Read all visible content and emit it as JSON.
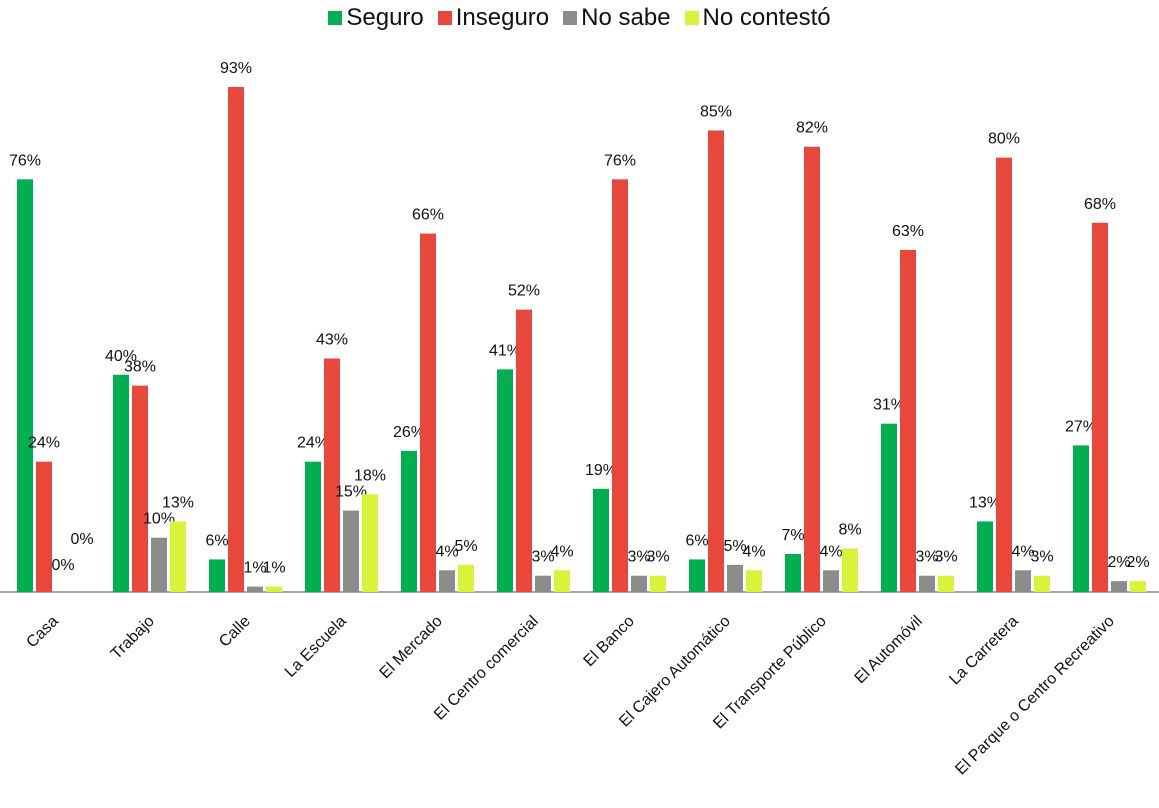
{
  "chart_data": {
    "type": "bar",
    "title": "",
    "xlabel": "",
    "ylabel": "",
    "ylim": [
      0,
      100
    ],
    "grid": false,
    "legend_position": "top-center",
    "categories": [
      "Casa",
      "Trabajo",
      "Calle",
      "La Escuela",
      "El Mercado",
      "El Centro comercial",
      "El Banco",
      "El Cajero Automático",
      "El Transporte Público",
      "El Automóvil",
      "La Carretera",
      "El Parque o Centro Recreativo"
    ],
    "series": [
      {
        "name": "Seguro",
        "color": "#00b050",
        "values": [
          76,
          40,
          6,
          24,
          26,
          41,
          19,
          6,
          7,
          31,
          13,
          27
        ]
      },
      {
        "name": "Inseguro",
        "color": "#e8473c",
        "values": [
          24,
          38,
          93,
          43,
          66,
          52,
          76,
          85,
          82,
          63,
          80,
          68
        ]
      },
      {
        "name": "No sabe",
        "color": "#8c8c8c",
        "values": [
          0,
          10,
          1,
          15,
          4,
          3,
          3,
          5,
          4,
          3,
          4,
          2
        ]
      },
      {
        "name": "No contestó",
        "color": "#d9f23a",
        "values": [
          0,
          13,
          1,
          18,
          5,
          4,
          3,
          4,
          8,
          3,
          3,
          2
        ]
      }
    ],
    "data_labels": [
      [
        "76%",
        "24%",
        "0%",
        "0%"
      ],
      [
        "40%",
        "38%",
        "10%",
        "13%"
      ],
      [
        "6%",
        "93%",
        "1%",
        "1%"
      ],
      [
        "24%",
        "43%",
        "15%",
        "18%"
      ],
      [
        "26%",
        "66%",
        "4%",
        "5%"
      ],
      [
        "41%",
        "52%",
        "3%",
        "4%"
      ],
      [
        "19%",
        "76%",
        "3%",
        "3%"
      ],
      [
        "6%",
        "85%",
        "5%",
        "4%"
      ],
      [
        "7%",
        "82%",
        "4%",
        "8%"
      ],
      [
        "31%",
        "63%",
        "3%",
        "3%"
      ],
      [
        "13%",
        "80%",
        "4%",
        "3%"
      ],
      [
        "27%",
        "68%",
        "2%",
        "2%"
      ]
    ]
  }
}
